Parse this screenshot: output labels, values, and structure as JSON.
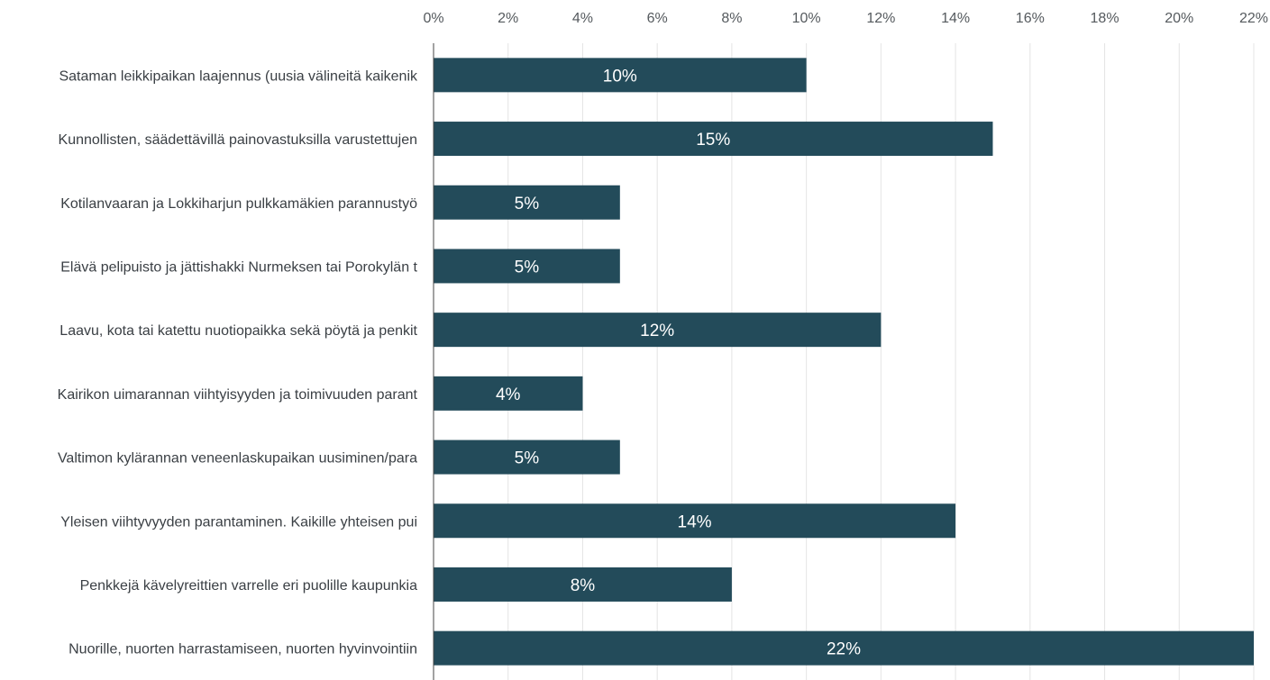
{
  "chart_data": {
    "type": "bar",
    "orientation": "horizontal",
    "x_ticks": [
      "0%",
      "2%",
      "4%",
      "6%",
      "8%",
      "10%",
      "12%",
      "14%",
      "16%",
      "18%",
      "20%",
      "22%"
    ],
    "xlim": [
      0,
      22
    ],
    "x_axis_position": "top",
    "grid": true,
    "categories": [
      "Sataman leikkipaikan laajennus (uusia välineitä kaikenik",
      "Kunnollisten, säädettävillä painovastuksilla varustettujen",
      "Kotilanvaaran ja Lokkiharjun pulkkamäkien parannustyö",
      "Elävä pelipuisto ja jättishakki Nurmeksen tai Porokylän t",
      "Laavu, kota tai katettu nuotiopaikka sekä pöytä ja penkit",
      "Kairikon uimarannan viihtyisyyden ja toimivuuden parant",
      "Valtimon kylärannan veneenlaskupaikan uusiminen/para",
      "Yleisen viihtyvyyden parantaminen. Kaikille yhteisen pui",
      "Penkkejä kävelyreittien varrelle eri puolille kaupunkia",
      "Nuorille, nuorten harrastamiseen, nuorten hyvinvointiin"
    ],
    "values": [
      10,
      15,
      5,
      5,
      12,
      4,
      5,
      14,
      8,
      22
    ],
    "value_labels": [
      "10%",
      "15%",
      "5%",
      "5%",
      "12%",
      "4%",
      "5%",
      "14%",
      "8%",
      "22%"
    ],
    "bar_color": "#234b5a"
  }
}
